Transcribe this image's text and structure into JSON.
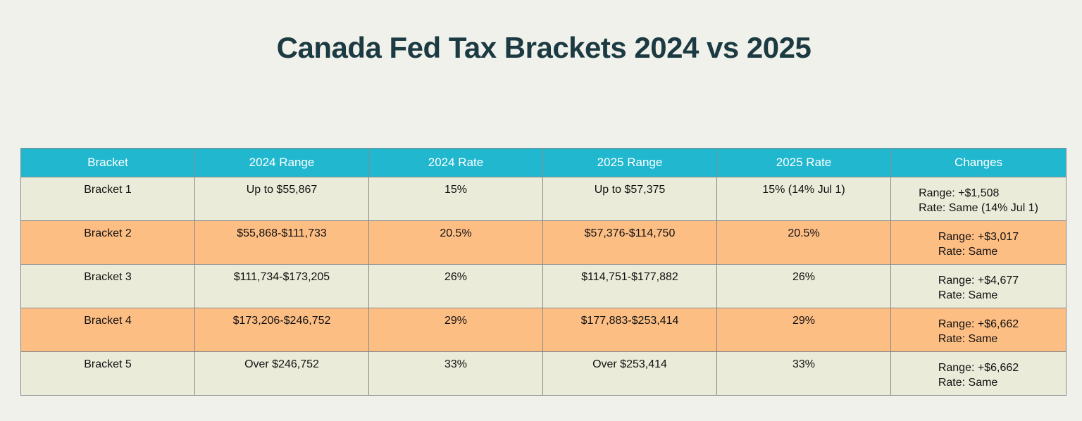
{
  "title": "Canada Fed Tax Brackets 2024 vs 2025",
  "colors": {
    "header_bg": "#21b8cf",
    "row_light": "#ebebd9",
    "row_orange": "#fdbe84",
    "title": "#1b3a42"
  },
  "chart_data": {
    "type": "table",
    "title": "Canada Fed Tax Brackets 2024 vs 2025",
    "columns": [
      "Bracket",
      "2024 Range",
      "2024 Rate",
      "2025 Range",
      "2025 Rate",
      "Changes"
    ],
    "rows": [
      {
        "bracket": "Bracket 1",
        "range_2024": "Up to $55,867",
        "rate_2024": "15%",
        "range_2025": "Up to $57,375",
        "rate_2025": "15% (14% Jul 1)",
        "change_range": "Range: +$1,508",
        "change_rate": "Rate: Same (14% Jul 1)"
      },
      {
        "bracket": "Bracket 2",
        "range_2024": "$55,868-$111,733",
        "rate_2024": "20.5%",
        "range_2025": "$57,376-$114,750",
        "rate_2025": "20.5%",
        "change_range": "Range: +$3,017",
        "change_rate": "Rate: Same"
      },
      {
        "bracket": "Bracket 3",
        "range_2024": "$111,734-$173,205",
        "rate_2024": "26%",
        "range_2025": "$114,751-$177,882",
        "rate_2025": "26%",
        "change_range": "Range: +$4,677",
        "change_rate": "Rate: Same"
      },
      {
        "bracket": "Bracket 4",
        "range_2024": "$173,206-$246,752",
        "rate_2024": "29%",
        "range_2025": "$177,883-$253,414",
        "rate_2025": "29%",
        "change_range": "Range: +$6,662",
        "change_rate": "Rate: Same"
      },
      {
        "bracket": "Bracket 5",
        "range_2024": "Over $246,752",
        "rate_2024": "33%",
        "range_2025": "Over $253,414",
        "rate_2025": "33%",
        "change_range": "Range: +$6,662",
        "change_rate": "Rate: Same"
      }
    ]
  }
}
